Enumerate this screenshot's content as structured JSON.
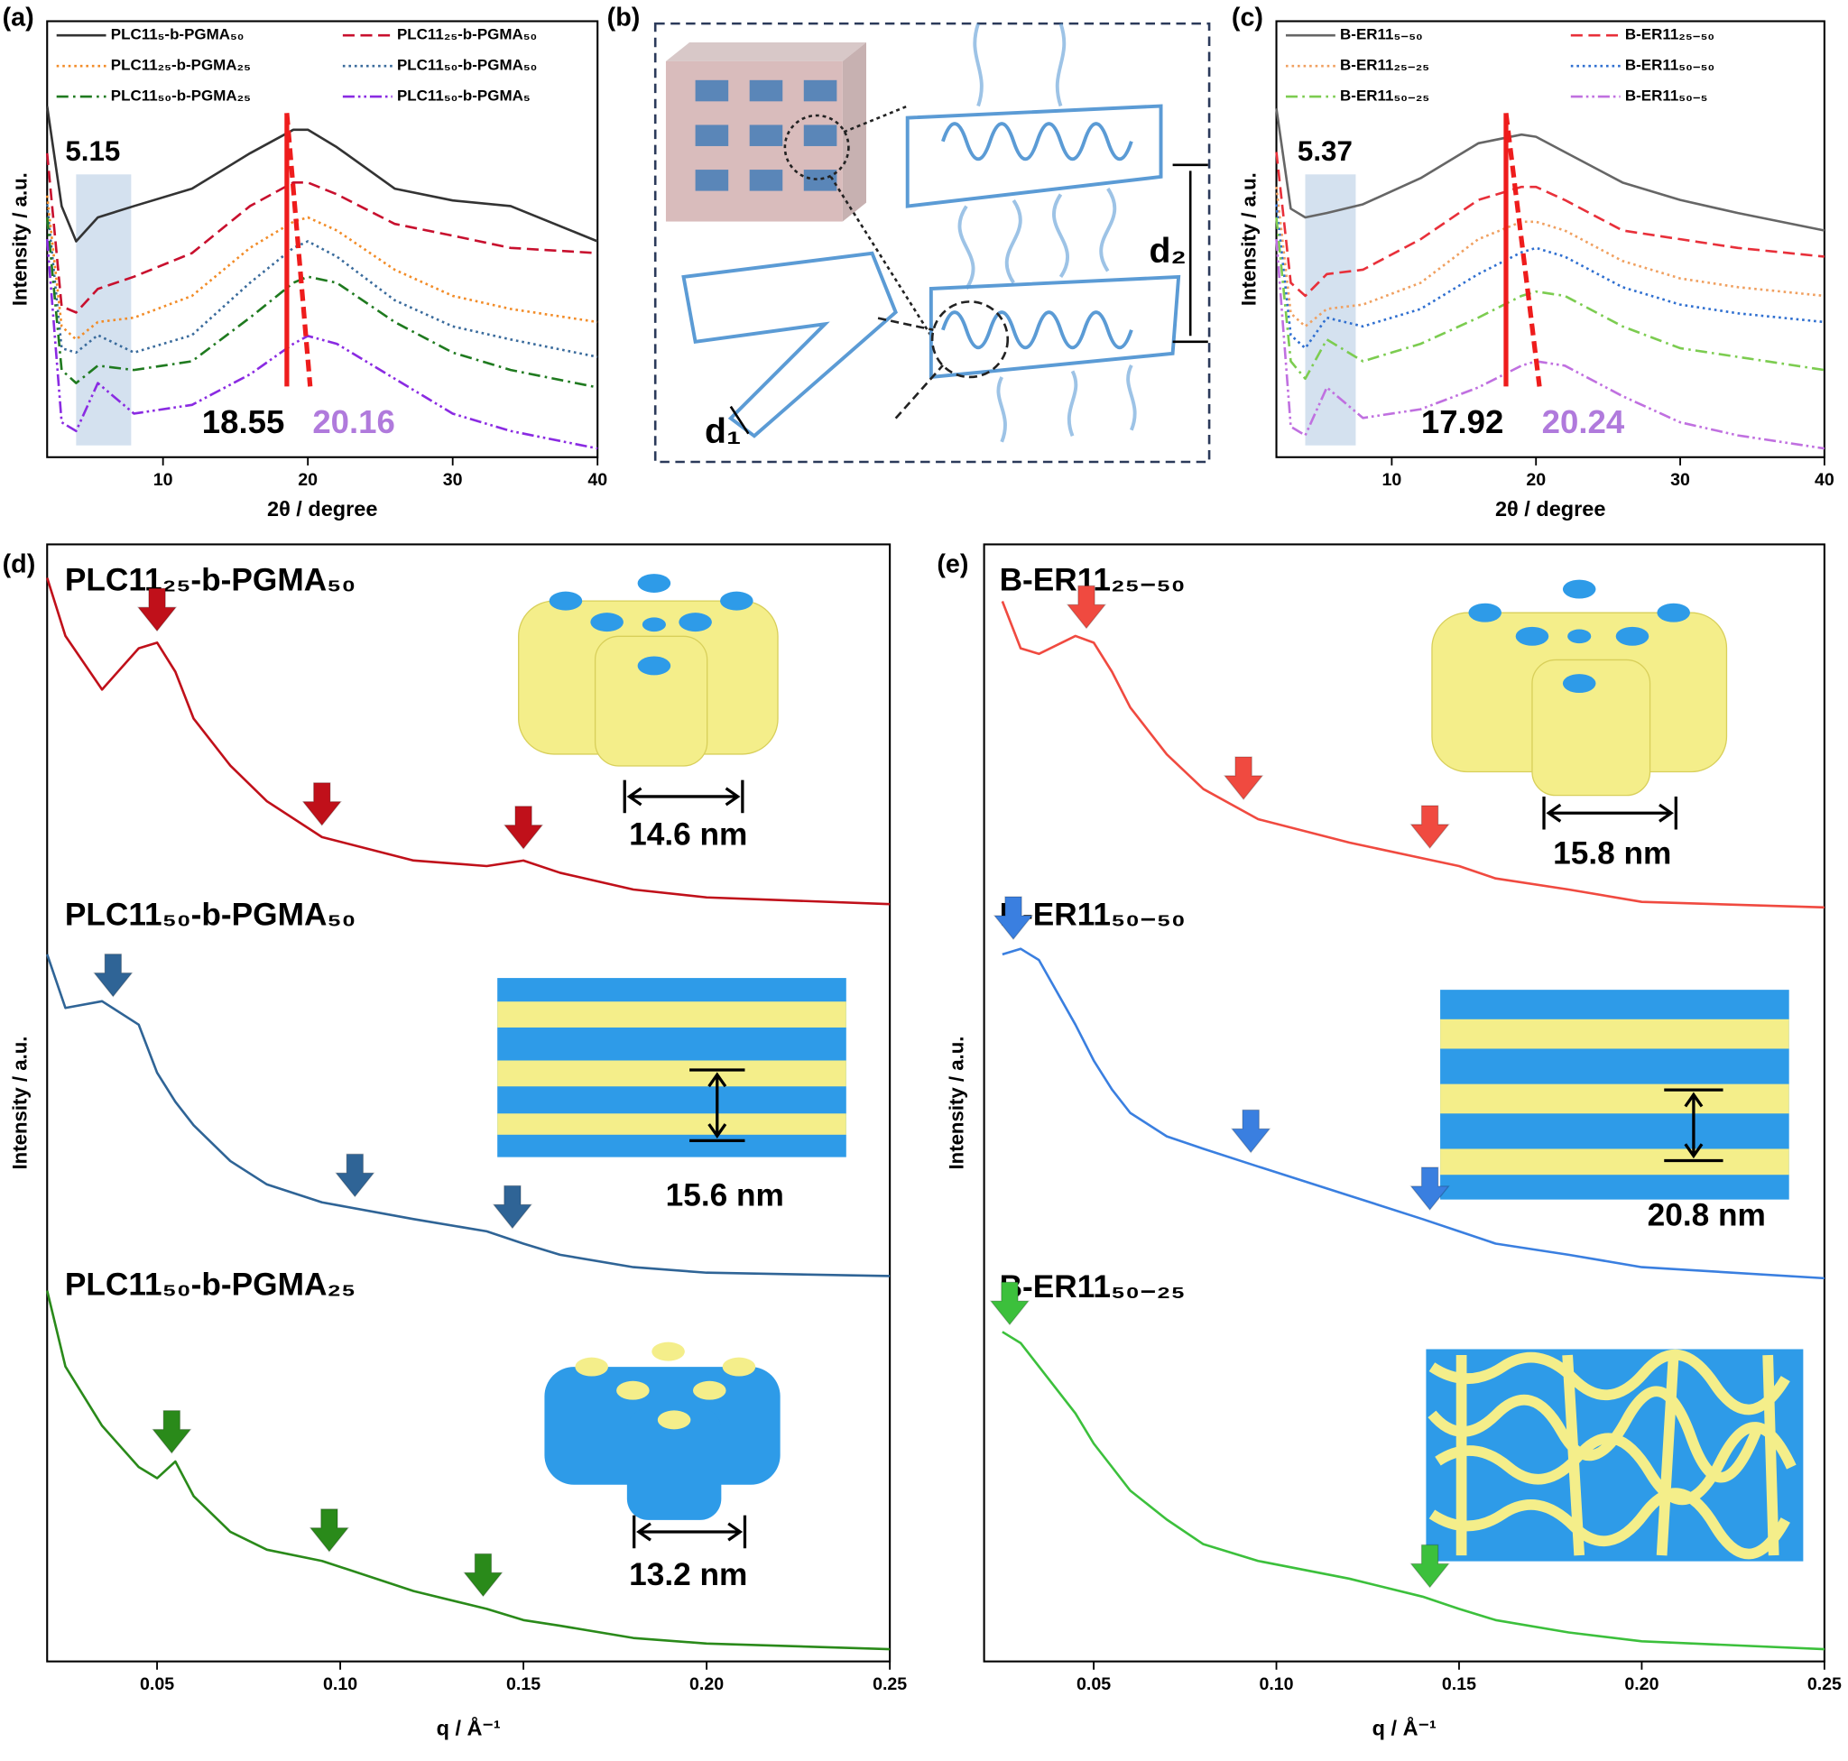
{
  "chart_data": [
    {
      "type": "line",
      "panel_label": "(a)",
      "x_label": "2θ / degree",
      "y_label": "Intensity / a.u.",
      "legend": "top",
      "xlim": [
        2,
        40
      ],
      "ylim": [
        0,
        100
      ],
      "xticks": [
        10,
        20,
        30,
        40
      ],
      "annotations": [
        5.15,
        18.55,
        20.16
      ],
      "shaded_band": [
        4,
        7.8
      ],
      "x": [
        2,
        3,
        4,
        5.5,
        8,
        12,
        16,
        19,
        20,
        22,
        26,
        30,
        34,
        40
      ],
      "series": [
        {
          "name": "PLC11₅-b-PGMA₅₀",
          "color": "#333333",
          "style": "solid",
          "values": [
            80.5,
            57.6,
            49.5,
            55,
            57.6,
            61.6,
            69.7,
            75.1,
            75.1,
            71.1,
            61.6,
            58.9,
            57.6,
            49.5
          ]
        },
        {
          "name": "PLC11₂₅-b-PGMA₅₀",
          "color": "#c8102e",
          "style": "dashed",
          "values": [
            69.7,
            34.6,
            33.2,
            38.6,
            41.4,
            46.8,
            57.6,
            63,
            63,
            60.3,
            53.5,
            50.8,
            48,
            46.8
          ]
        },
        {
          "name": "PLC11₂₅-b-PGMA₂₅",
          "color": "#f28c28",
          "style": "dotted",
          "values": [
            60,
            30,
            27,
            31,
            32,
            37,
            48,
            54,
            55,
            52,
            43,
            37,
            34,
            31
          ]
        },
        {
          "name": "PLC11₅₀-b-PGMA₅₀",
          "color": "#3a6b9c",
          "style": "dotted",
          "values": [
            58,
            25,
            24,
            28,
            24,
            28,
            40,
            48,
            49.5,
            46,
            36,
            30,
            27,
            23
          ]
        },
        {
          "name": "PLC11₅₀-b-PGMA₂₅",
          "color": "#1f7a1f",
          "style": "dashdot",
          "values": [
            55,
            20,
            17,
            21,
            20,
            22,
            32,
            40,
            41.4,
            40,
            31,
            24,
            20,
            16
          ]
        },
        {
          "name": "PLC11₅₀-b-PGMA₅",
          "color": "#8a2be2",
          "style": "dashdotdot",
          "values": [
            50,
            8,
            6,
            17,
            10,
            12,
            19,
            26,
            27.8,
            26,
            18,
            10,
            6,
            2
          ]
        }
      ]
    },
    {
      "type": "line",
      "panel_label": "(c)",
      "x_label": "2θ / degree",
      "y_label": "Intensity / a.u.",
      "legend": "top",
      "xlim": [
        2,
        40
      ],
      "ylim": [
        0,
        100
      ],
      "xticks": [
        10,
        20,
        30,
        40
      ],
      "annotations": [
        5.37,
        17.92,
        20.24
      ],
      "shaded_band": [
        4,
        7.5
      ],
      "x": [
        2,
        3,
        4,
        5.5,
        8,
        12,
        16,
        19,
        20,
        22,
        26,
        30,
        34,
        40
      ],
      "series": [
        {
          "name": "B-ER11₅₋₅₀",
          "color": "#666666",
          "style": "solid",
          "values": [
            80,
            57,
            55,
            56,
            58,
            64,
            72,
            74,
            73.5,
            70,
            63,
            59,
            56,
            52
          ]
        },
        {
          "name": "B-ER11₂₅₋₅₀",
          "color": "#e8303a",
          "style": "dashed",
          "values": [
            70,
            40,
            37,
            42,
            43,
            50,
            59,
            62,
            62,
            59,
            52,
            50,
            48,
            46
          ]
        },
        {
          "name": "B-ER11₂₅₋₂₅",
          "color": "#f0a060",
          "style": "dotted",
          "values": [
            62,
            33,
            30,
            34,
            35,
            40,
            50,
            54,
            54,
            52,
            45,
            41,
            39,
            37
          ]
        },
        {
          "name": "B-ER11₅₀₋₅₀",
          "color": "#2f6fd0",
          "style": "dotted",
          "values": [
            58,
            28,
            25,
            32,
            30,
            34,
            42,
            47,
            48,
            46,
            39,
            35,
            33,
            31
          ]
        },
        {
          "name": "B-ER11₅₀₋₂₅",
          "color": "#7ccc50",
          "style": "dashdot",
          "values": [
            55,
            22,
            18,
            27,
            22,
            26,
            32,
            37,
            38,
            37,
            30,
            25,
            23,
            20
          ]
        },
        {
          "name": "B-ER11₅₀₋₅",
          "color": "#c070e0",
          "style": "dashdotdot",
          "values": [
            50,
            7,
            5,
            16,
            9,
            11,
            16,
            21,
            22,
            21,
            14,
            8,
            5,
            2
          ]
        }
      ]
    },
    {
      "type": "line",
      "panel_label": "(d)",
      "x_label": "q / Å⁻¹",
      "y_label": "Intensity / a.u.",
      "legend": "inline",
      "xlim": [
        0.02,
        0.25
      ],
      "ylim": [
        0,
        100
      ],
      "xticks": [
        {
          "value": 0.05,
          "label": "0.05"
        },
        {
          "value": 0.1,
          "label": "0.10"
        },
        {
          "value": 0.15,
          "label": "0.15"
        },
        {
          "value": 0.2,
          "label": "0.20"
        },
        {
          "value": 0.25,
          "label": "0.25"
        }
      ],
      "x": [
        0.02,
        0.025,
        0.035,
        0.045,
        0.05,
        0.055,
        0.06,
        0.07,
        0.08,
        0.095,
        0.12,
        0.14,
        0.15,
        0.16,
        0.18,
        0.2,
        0.25
      ],
      "series": [
        {
          "name": "PLC11₂₅-b-PGMA₅₀",
          "color": "#c0101a",
          "style": "solid",
          "scale_label": "14.6 nm",
          "arrows": [
            0.05,
            0.095,
            0.15
          ],
          "values": [
            97,
            91.8,
            87,
            90.7,
            91.2,
            88.6,
            84.4,
            80.2,
            77,
            73.8,
            71.7,
            71.2,
            71.7,
            70.6,
            69.1,
            68.4,
            67.8
          ]
        },
        {
          "name": "PLC11₅₀-b-PGMA₅₀",
          "color": "#2f6496",
          "style": "solid",
          "scale_label": "15.6 nm",
          "arrows": [
            0.038,
            0.104,
            0.147
          ],
          "values": [
            63.3,
            58.5,
            59.1,
            57,
            52.7,
            50.1,
            48,
            44.8,
            42.7,
            41.1,
            39.6,
            38.5,
            37.4,
            36.4,
            35.3,
            34.8,
            34.5
          ]
        },
        {
          "name": "PLC11₅₀-b-PGMA₂₅",
          "color": "#2a8a1a",
          "style": "solid",
          "scale_label": "13.2 nm",
          "arrows": [
            0.054,
            0.097,
            0.139
          ],
          "values": [
            33.2,
            26.4,
            21.1,
            17.4,
            16.4,
            17.9,
            14.8,
            11.6,
            10,
            9,
            6.3,
            4.7,
            3.7,
            3.2,
            2.1,
            1.6,
            1.1
          ]
        }
      ]
    },
    {
      "type": "line",
      "panel_label": "(e)",
      "x_label": "q / Å⁻¹",
      "y_label": "Intensity / a.u.",
      "legend": "inline",
      "xlim": [
        0.02,
        0.25
      ],
      "ylim": [
        0,
        100
      ],
      "xticks": [
        {
          "value": 0.05,
          "label": "0.05"
        },
        {
          "value": 0.1,
          "label": "0.10"
        },
        {
          "value": 0.15,
          "label": "0.15"
        },
        {
          "value": 0.2,
          "label": "0.20"
        },
        {
          "value": 0.25,
          "label": "0.25"
        }
      ],
      "x": [
        0.025,
        0.03,
        0.035,
        0.045,
        0.05,
        0.055,
        0.06,
        0.07,
        0.08,
        0.095,
        0.12,
        0.14,
        0.15,
        0.16,
        0.18,
        0.2,
        0.25
      ],
      "series": [
        {
          "name": "B-ER11₂₅₋₅₀",
          "color": "#f04a40",
          "style": "solid",
          "scale_label": "15.8 nm",
          "arrows": [
            0.048,
            0.091,
            0.142
          ],
          "values": [
            94.9,
            90.7,
            90.2,
            91.8,
            91.2,
            88.6,
            85.4,
            81.2,
            78.1,
            75.4,
            73.3,
            71.9,
            71.2,
            70.1,
            69.1,
            68,
            67.5
          ]
        },
        {
          "name": "B-ER11₅₀₋₅₀",
          "color": "#3a7fe0",
          "style": "solid",
          "scale_label": "20.8 nm",
          "arrows": [
            0.028,
            0.093,
            0.142
          ],
          "values": [
            63.3,
            63.8,
            62.8,
            57,
            53.8,
            51.2,
            49.1,
            47,
            45.9,
            44.3,
            41.7,
            39.6,
            38.5,
            37.4,
            36.4,
            35.3,
            34.3
          ]
        },
        {
          "name": "B-ER11₅₀₋₂₅",
          "color": "#3cc03c",
          "style": "solid",
          "arrows": [
            0.027,
            0.142
          ],
          "values": [
            29.5,
            28.5,
            26.4,
            22.2,
            19.5,
            17.4,
            15.3,
            12.7,
            10.5,
            9,
            7.4,
            5.8,
            4.7,
            3.7,
            2.6,
            1.8,
            1.1
          ]
        }
      ]
    }
  ],
  "diagram": {
    "panel_label": "(b)",
    "labels": [
      "d₁",
      "d₂"
    ]
  }
}
